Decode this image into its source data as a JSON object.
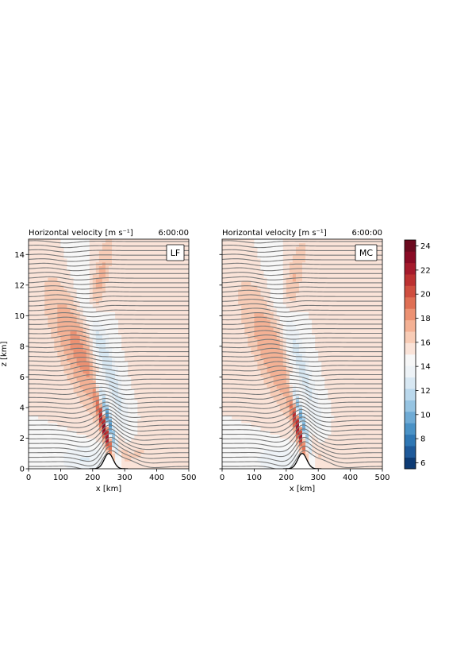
{
  "chart_data": [
    {
      "type": "heatmap",
      "title": "Horizontal velocity [m s⁻¹]",
      "time": "6:00:00",
      "label": "LF",
      "xlabel": "x [km]",
      "ylabel": "z [km]",
      "xlim": [
        0,
        500
      ],
      "ylim": [
        0,
        15
      ],
      "xticks": [
        0,
        100,
        200,
        300,
        400,
        500
      ],
      "yticks": [
        0,
        2,
        4,
        6,
        8,
        10,
        12,
        14
      ],
      "mountain": {
        "center_km": 250,
        "height_km": 1.0,
        "half_width_km": 25
      },
      "background_velocity": 15,
      "features": [
        {
          "kind": "positive",
          "shape": "tilted band",
          "max": 18
        },
        {
          "kind": "negative",
          "shape": "tilted band",
          "min": 10
        },
        {
          "kind": "positive",
          "shape": "lee jet core",
          "max": 24
        },
        {
          "kind": "negative",
          "shape": "lee wake",
          "min": 6
        }
      ]
    },
    {
      "type": "heatmap",
      "title": "Horizontal velocity [m s⁻¹]",
      "time": "6:00:00",
      "label": "MC",
      "xlabel": "x [km]",
      "ylabel": "",
      "xlim": [
        0,
        500
      ],
      "ylim": [
        0,
        15
      ],
      "xticks": [
        0,
        100,
        200,
        300,
        400,
        500
      ],
      "yticks": [
        0,
        2,
        4,
        6,
        8,
        10,
        12,
        14
      ],
      "mountain": {
        "center_km": 250,
        "height_km": 1.0,
        "half_width_km": 25
      },
      "background_velocity": 15,
      "features": [
        {
          "kind": "positive",
          "shape": "tilted band",
          "max": 17
        },
        {
          "kind": "negative",
          "shape": "tilted band",
          "min": 11
        },
        {
          "kind": "positive",
          "shape": "lee jet core",
          "max": 23
        },
        {
          "kind": "negative",
          "shape": "lee wake",
          "min": 7
        }
      ]
    }
  ],
  "colorbar": {
    "min": 5.5,
    "max": 24.5,
    "ticks": [
      6,
      8,
      10,
      12,
      14,
      16,
      18,
      20,
      22,
      24
    ],
    "colors": [
      "#0d3b74",
      "#1f5a9a",
      "#2f77b4",
      "#4a92c6",
      "#6fabd5",
      "#96c4e2",
      "#bad8ec",
      "#d8e8f3",
      "#eef3f7",
      "#f7f7f7",
      "#fae3d8",
      "#f8ccb6",
      "#f4b194",
      "#ec9172",
      "#df6f54",
      "#cf4e3f",
      "#bc3131",
      "#a51a2c",
      "#8a0b25",
      "#6b0a1f"
    ]
  },
  "colors": {
    "contour": "#7a7a7a",
    "mountain": "#000000"
  }
}
